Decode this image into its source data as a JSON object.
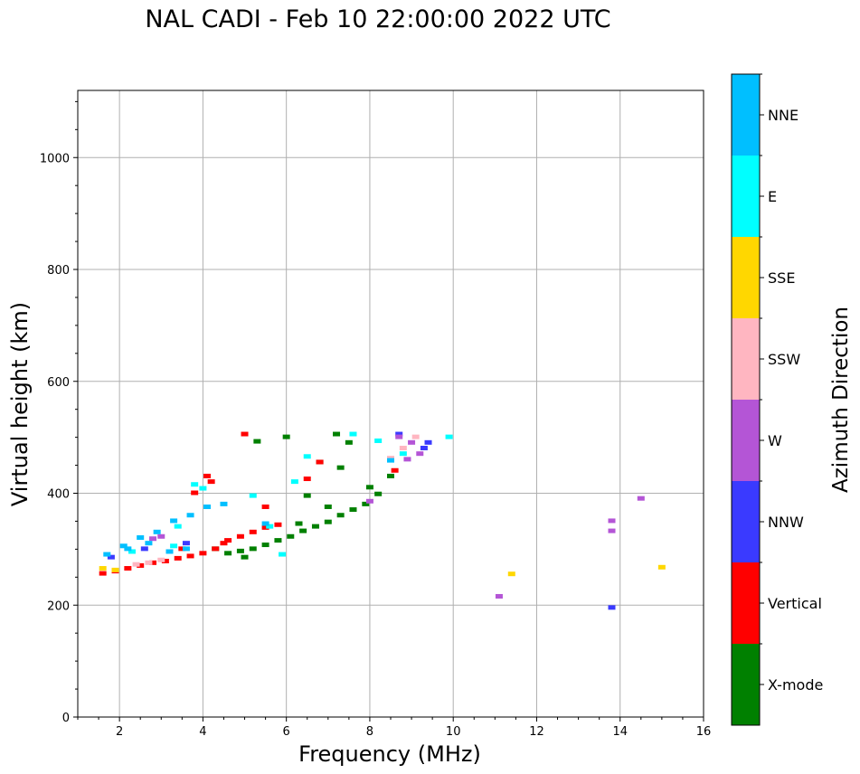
{
  "chart_data": {
    "type": "scatter",
    "title": "NAL CADI - Feb 10 22:00:00 2022 UTC",
    "xlabel": "Frequency (MHz)",
    "ylabel": "Virtual height (km)",
    "xlim": [
      1,
      16
    ],
    "ylim": [
      0,
      1120
    ],
    "xticks": [
      2,
      4,
      6,
      8,
      10,
      12,
      14,
      16
    ],
    "yticks": [
      0,
      200,
      400,
      600,
      800,
      1000
    ],
    "grid": true,
    "colorbar": {
      "label": "Azimuth Direction",
      "categories": [
        {
          "name": "X-mode",
          "color": "#008000"
        },
        {
          "name": "Vertical",
          "color": "#ff0000"
        },
        {
          "name": "NNW",
          "color": "#3a3aff"
        },
        {
          "name": "W",
          "color": "#b455d6"
        },
        {
          "name": "SSW",
          "color": "#ffb6c1"
        },
        {
          "name": "SSE",
          "color": "#ffd700"
        },
        {
          "name": "E",
          "color": "#00ffff"
        },
        {
          "name": "NNE",
          "color": "#00bfff"
        }
      ]
    },
    "series": [
      {
        "name": "X-mode",
        "points": [
          [
            4.6,
            292
          ],
          [
            4.9,
            296
          ],
          [
            5.2,
            300
          ],
          [
            5.5,
            307
          ],
          [
            5.8,
            315
          ],
          [
            6.1,
            322
          ],
          [
            6.4,
            332
          ],
          [
            6.7,
            340
          ],
          [
            7.0,
            348
          ],
          [
            7.3,
            360
          ],
          [
            7.6,
            370
          ],
          [
            7.9,
            380
          ],
          [
            8.2,
            398
          ],
          [
            7.2,
            505
          ],
          [
            7.5,
            490
          ],
          [
            6.8,
            455
          ],
          [
            7.3,
            445
          ],
          [
            8.0,
            410
          ],
          [
            8.5,
            430
          ],
          [
            5.3,
            492
          ],
          [
            6.0,
            500
          ],
          [
            4.3,
            300
          ],
          [
            5.0,
            285
          ],
          [
            6.3,
            345
          ],
          [
            7.0,
            375
          ],
          [
            6.5,
            395
          ]
        ]
      },
      {
        "name": "Vertical",
        "points": [
          [
            1.6,
            256
          ],
          [
            1.9,
            260
          ],
          [
            2.2,
            265
          ],
          [
            2.5,
            270
          ],
          [
            2.8,
            275
          ],
          [
            3.1,
            278
          ],
          [
            3.4,
            283
          ],
          [
            3.7,
            287
          ],
          [
            4.0,
            292
          ],
          [
            4.3,
            300
          ],
          [
            4.6,
            315
          ],
          [
            4.9,
            322
          ],
          [
            5.2,
            330
          ],
          [
            5.5,
            338
          ],
          [
            5.8,
            343
          ],
          [
            4.1,
            430
          ],
          [
            4.2,
            420
          ],
          [
            3.8,
            400
          ],
          [
            5.5,
            375
          ],
          [
            6.5,
            425
          ],
          [
            5.0,
            505
          ],
          [
            6.8,
            455
          ],
          [
            8.6,
            440
          ],
          [
            3.5,
            300
          ],
          [
            4.5,
            310
          ]
        ]
      },
      {
        "name": "NNW",
        "points": [
          [
            1.8,
            285
          ],
          [
            2.6,
            300
          ],
          [
            3.6,
            310
          ],
          [
            9.3,
            480
          ],
          [
            13.8,
            195
          ],
          [
            8.7,
            505
          ],
          [
            9.4,
            490
          ]
        ]
      },
      {
        "name": "W",
        "points": [
          [
            2.8,
            318
          ],
          [
            3.0,
            322
          ],
          [
            8.7,
            500
          ],
          [
            9.0,
            490
          ],
          [
            9.2,
            470
          ],
          [
            8.9,
            460
          ],
          [
            8.0,
            385
          ],
          [
            13.8,
            332
          ],
          [
            14.5,
            390
          ],
          [
            11.1,
            215
          ],
          [
            13.8,
            350
          ]
        ]
      },
      {
        "name": "SSW",
        "points": [
          [
            2.4,
            272
          ],
          [
            2.7,
            275
          ],
          [
            3.0,
            280
          ],
          [
            9.1,
            500
          ],
          [
            8.8,
            480
          ],
          [
            8.5,
            462
          ]
        ]
      },
      {
        "name": "SSE",
        "points": [
          [
            1.6,
            265
          ],
          [
            1.9,
            262
          ],
          [
            11.4,
            255
          ],
          [
            15.0,
            267
          ]
        ]
      },
      {
        "name": "E",
        "points": [
          [
            2.3,
            295
          ],
          [
            3.3,
            305
          ],
          [
            3.8,
            415
          ],
          [
            4.0,
            408
          ],
          [
            5.2,
            395
          ],
          [
            6.5,
            465
          ],
          [
            7.6,
            505
          ],
          [
            8.2,
            493
          ],
          [
            8.8,
            470
          ],
          [
            9.9,
            500
          ],
          [
            6.2,
            420
          ],
          [
            5.6,
            340
          ],
          [
            3.4,
            340
          ],
          [
            5.9,
            290
          ]
        ]
      },
      {
        "name": "NNE",
        "points": [
          [
            1.7,
            290
          ],
          [
            2.1,
            305
          ],
          [
            2.5,
            320
          ],
          [
            2.9,
            330
          ],
          [
            3.3,
            350
          ],
          [
            3.7,
            360
          ],
          [
            4.1,
            375
          ],
          [
            4.5,
            380
          ],
          [
            3.6,
            300
          ],
          [
            3.2,
            295
          ],
          [
            2.2,
            300
          ],
          [
            2.7,
            310
          ],
          [
            5.5,
            345
          ],
          [
            8.5,
            458
          ]
        ]
      }
    ]
  }
}
